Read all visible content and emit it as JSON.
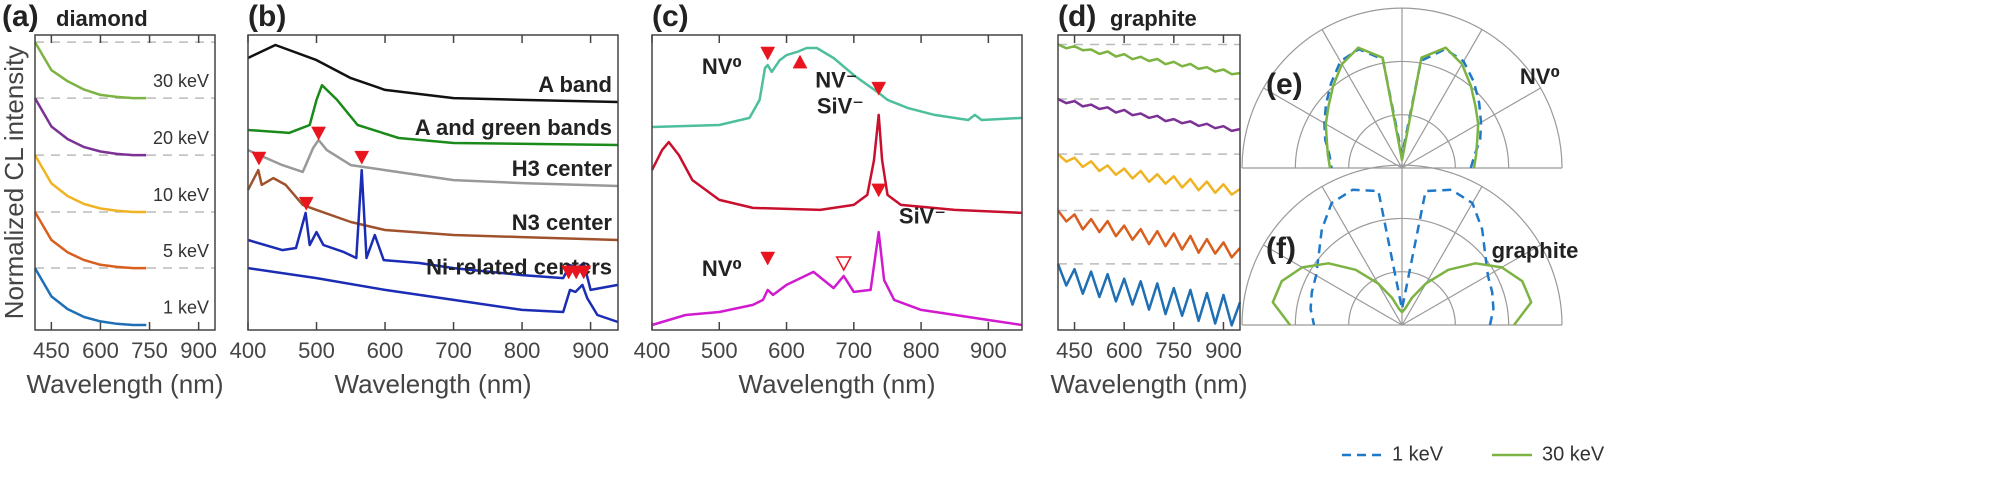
{
  "chart_data": [
    {
      "type": "line",
      "label": "(a)",
      "title": "diamond",
      "xlabel": "Wavelength (nm)",
      "ylabel": "Normalized CL intensity",
      "xlim": [
        400,
        950
      ],
      "xticks": [
        450,
        600,
        750,
        900
      ],
      "ylim": [
        0,
        100
      ],
      "dashed_guides": true,
      "x": [
        400,
        450,
        500,
        550,
        600,
        650,
        700,
        740
      ],
      "series": [
        {
          "name": "30 keV",
          "color": "#7cb342",
          "values": [
            97.6,
            88.1,
            84.3,
            81.5,
            79.7,
            79,
            78.6,
            78.6
          ]
        },
        {
          "name": "20 keV",
          "color": "#7b3294",
          "values": [
            78.6,
            69,
            64.7,
            62,
            60.5,
            59.7,
            59.3,
            59.3
          ]
        },
        {
          "name": "10 keV",
          "color": "#f0b323",
          "values": [
            59.3,
            49.7,
            45.4,
            42.7,
            41.2,
            40.4,
            40,
            40
          ]
        },
        {
          "name": "5 keV",
          "color": "#d95f1e",
          "values": [
            40,
            30.5,
            26.3,
            23.7,
            22.1,
            21.4,
            21,
            21
          ]
        },
        {
          "name": "1 keV",
          "color": "#1f6fb4",
          "values": [
            21,
            11.4,
            7.1,
            4.4,
            2.9,
            2.1,
            1.7,
            1.7
          ]
        }
      ]
    },
    {
      "type": "line",
      "label": "(b)",
      "xlabel": "Wavelength (nm)",
      "xlim": [
        400,
        940
      ],
      "xticks": [
        400,
        500,
        600,
        700,
        800,
        900
      ],
      "ylim": [
        0,
        100
      ],
      "series": [
        {
          "name": "A band",
          "color": "#111111",
          "x": [
            400,
            440,
            500,
            550,
            600,
            700,
            800,
            940
          ],
          "values": [
            92.2,
            96.6,
            91.5,
            85.4,
            81.4,
            78.6,
            78,
            77.3
          ]
        },
        {
          "name": "A and green bands",
          "color": "#1a8a1a",
          "x": [
            400,
            460,
            490,
            500,
            508,
            530,
            560,
            620,
            700,
            940
          ],
          "values": [
            67.8,
            66.8,
            69.5,
            78,
            83,
            78,
            69.5,
            65.1,
            63.4,
            62.7
          ]
        },
        {
          "name": "H3 center",
          "color": "#999999",
          "x": [
            400,
            450,
            480,
            495,
            503,
            515,
            550,
            600,
            700,
            800,
            940
          ],
          "values": [
            61,
            55.9,
            53.6,
            61.7,
            64.4,
            61,
            55.9,
            54.2,
            50.8,
            49.8,
            48.8
          ]
        },
        {
          "name": "N3 center",
          "color": "#a0522d",
          "x": [
            400,
            415,
            420,
            437,
            455,
            480,
            500,
            550,
            600,
            700,
            800,
            940
          ],
          "values": [
            47.5,
            54.2,
            49.2,
            51.5,
            49.2,
            42.4,
            40.7,
            36.6,
            33.9,
            32.2,
            31.5,
            30.5
          ]
        },
        {
          "name": "Ni-related centers",
          "color": "#1a2db4",
          "x": [
            400,
            450,
            470,
            484,
            490,
            500,
            510,
            540,
            558,
            566,
            573,
            585,
            598,
            650,
            700,
            800,
            860,
            870,
            880,
            890,
            900,
            940
          ],
          "values": [
            30.5,
            27.1,
            27.8,
            39.7,
            28.8,
            33.2,
            28.8,
            26.4,
            24.4,
            54.2,
            24.4,
            32.2,
            23.7,
            22.7,
            21,
            18.6,
            17.6,
            22,
            21,
            22.7,
            13.6,
            15.3
          ]
        },
        {
          "color": "#1a2db4",
          "x": [
            400,
            500,
            600,
            700,
            800,
            860,
            870,
            878,
            888,
            895,
            910,
            940
          ],
          "values": [
            21,
            17.6,
            13.6,
            10.2,
            6.8,
            6.1,
            13.6,
            12.9,
            15.3,
            10.8,
            5.1,
            2.7
          ]
        }
      ],
      "markers": [
        {
          "x": 503,
          "y": 66.8,
          "shape": "down"
        },
        {
          "x": 416,
          "y": 58.3,
          "shape": "down"
        },
        {
          "x": 485,
          "y": 43,
          "shape": "down"
        },
        {
          "x": 566,
          "y": 58.6,
          "shape": "down"
        },
        {
          "x": 868,
          "y": 19.7,
          "shape": "down"
        },
        {
          "x": 879,
          "y": 19.7,
          "shape": "down"
        },
        {
          "x": 890,
          "y": 19.7,
          "shape": "down"
        }
      ]
    },
    {
      "type": "line",
      "label": "(c)",
      "xlabel": "Wavelength (nm)",
      "xlim": [
        400,
        950
      ],
      "xticks": [
        400,
        500,
        600,
        700,
        800,
        900
      ],
      "ylim": [
        0,
        100
      ],
      "series": [
        {
          "color": "#4dbf9c",
          "x": [
            400,
            500,
            545,
            560,
            568,
            572,
            578,
            590,
            600,
            615,
            630,
            645,
            670,
            700,
            720,
            735,
            750,
            780,
            820,
            870,
            880,
            890,
            950
          ],
          "values": [
            68.8,
            69.5,
            71.9,
            78,
            88.8,
            89.8,
            87.5,
            91.5,
            93.2,
            94.2,
            95.6,
            95.6,
            92.2,
            86.4,
            83.1,
            80.7,
            78,
            75.3,
            72.9,
            71.2,
            72.9,
            71.2,
            71.9
          ]
        },
        {
          "color": "#c8102e",
          "x": [
            400,
            415,
            425,
            440,
            460,
            500,
            550,
            650,
            700,
            720,
            730,
            737,
            742,
            750,
            770,
            850,
            950
          ],
          "values": [
            54.2,
            61,
            63.7,
            59.3,
            50.8,
            44.1,
            41.4,
            40.7,
            42.4,
            45.8,
            57.6,
            72.9,
            57.6,
            45.8,
            42.4,
            40.7,
            39.7
          ]
        },
        {
          "color": "#d01bd0",
          "x": [
            400,
            450,
            500,
            550,
            565,
            572,
            580,
            600,
            640,
            670,
            685,
            700,
            725,
            737,
            745,
            760,
            800,
            900,
            950
          ],
          "values": [
            1.7,
            5.1,
            6.1,
            8.5,
            10.2,
            13.6,
            11.9,
            15.3,
            19.7,
            14.2,
            18.3,
            12.9,
            13.6,
            33.2,
            16.9,
            10.2,
            6.8,
            3.4,
            1.7
          ]
        }
      ],
      "markers": [
        {
          "x": 572,
          "y": 93.9,
          "shape": "down"
        },
        {
          "x": 620,
          "y": 90.8,
          "shape": "up"
        },
        {
          "x": 737,
          "y": 82,
          "shape": "down"
        },
        {
          "x": 572,
          "y": 24.4,
          "shape": "down"
        },
        {
          "x": 737,
          "y": 47.5,
          "shape": "down"
        },
        {
          "x": 685,
          "y": 22.7,
          "shape": "down-open"
        }
      ],
      "annotations": [
        {
          "text": "NV⁰",
          "x": 504,
          "y": 88.8
        },
        {
          "text": "NV⁻",
          "x": 674,
          "y": 84.1
        },
        {
          "text": "SiV⁻",
          "x": 680,
          "y": 75.3
        },
        {
          "text": "SiV⁻",
          "x": 802,
          "y": 38
        },
        {
          "text": "NV⁰",
          "x": 504,
          "y": 20.3
        }
      ]
    },
    {
      "type": "line",
      "label": "(d)",
      "title": "graphite",
      "xlabel": "Wavelength (nm)",
      "xlim": [
        400,
        950
      ],
      "xticks": [
        450,
        600,
        750,
        900
      ],
      "ylim": [
        0,
        100
      ],
      "dashed_guides": true,
      "x": [
        400,
        425,
        450,
        475,
        500,
        525,
        550,
        575,
        600,
        625,
        650,
        675,
        700,
        725,
        750,
        775,
        800,
        825,
        850,
        875,
        900,
        925,
        950
      ],
      "series": [
        {
          "color": "#7cb342",
          "values": [
            96.8,
            95.5,
            96.2,
            94.8,
            95.1,
            93.6,
            94.4,
            92.7,
            93.5,
            91.8,
            92.6,
            91.2,
            91.9,
            90.1,
            90.9,
            89.4,
            90.2,
            88.5,
            89.1,
            87.6,
            88.3,
            86.7,
            87.1
          ]
        },
        {
          "color": "#7b3294",
          "values": [
            78.3,
            76.9,
            77.6,
            75.8,
            76.4,
            74.9,
            75.5,
            73.7,
            74.6,
            72.8,
            73.4,
            71.9,
            72.6,
            70.8,
            71.5,
            70.1,
            70.7,
            69.2,
            69.9,
            68.4,
            69.1,
            67.5,
            68.1
          ]
        },
        {
          "color": "#f0b323",
          "values": [
            59.6,
            57.1,
            58.4,
            55.3,
            57.2,
            53.9,
            55.8,
            52.6,
            54.7,
            51.4,
            53.9,
            50.2,
            52.8,
            49.6,
            52.1,
            48.3,
            51.2,
            47.4,
            50.3,
            46.5,
            49.4,
            45.9,
            47.8
          ]
        },
        {
          "color": "#d95f1e",
          "values": [
            40.5,
            36.8,
            39.2,
            34.1,
            37.6,
            33.2,
            36.9,
            31.8,
            35.4,
            30.6,
            34.2,
            29.1,
            33.5,
            28.4,
            32.7,
            27.3,
            31.9,
            26.2,
            30.8,
            25.9,
            29.7,
            24.6,
            27.8
          ]
        },
        {
          "color": "#1f6fb4",
          "values": [
            22.4,
            15.1,
            20.6,
            12.3,
            19.8,
            11.2,
            18.9,
            9.7,
            17.4,
            8.6,
            16.5,
            6.9,
            15.8,
            5.4,
            14.2,
            4.8,
            13.6,
            3.1,
            12.5,
            2.2,
            11.9,
            1.6,
            9.4
          ]
        }
      ]
    },
    {
      "type": "polar",
      "label": "(e)",
      "title": "NV⁰",
      "rlim": [
        0,
        1
      ],
      "theta": [
        0,
        10,
        20,
        30,
        40,
        50,
        60,
        70,
        80,
        90,
        100,
        110,
        120,
        130,
        140,
        150,
        160,
        170,
        180
      ],
      "series": [
        {
          "color": "#1f78c8",
          "dash": true,
          "values": [
            0.43,
            0.46,
            0.52,
            0.57,
            0.63,
            0.7,
            0.77,
            0.79,
            0.68,
            0.08,
            0.69,
            0.79,
            0.77,
            0.69,
            0.62,
            0.56,
            0.51,
            0.46,
            0.44
          ]
        },
        {
          "color": "#7cb342",
          "values": [
            0.45,
            0.47,
            0.5,
            0.55,
            0.6,
            0.67,
            0.75,
            0.8,
            0.7,
            0.05,
            0.7,
            0.8,
            0.75,
            0.67,
            0.6,
            0.55,
            0.5,
            0.47,
            0.45
          ]
        }
      ]
    },
    {
      "type": "polar",
      "label": "(f)",
      "title": "graphite",
      "rlim": [
        0,
        1
      ],
      "legend": "bottom",
      "theta": [
        0,
        10,
        20,
        30,
        40,
        50,
        60,
        70,
        80,
        90,
        100,
        110,
        120,
        130,
        140,
        150,
        160,
        170,
        180
      ],
      "series": [
        {
          "name": "1 keV",
          "color": "#1f78c8",
          "dash": true,
          "values": [
            0.55,
            0.58,
            0.6,
            0.62,
            0.68,
            0.78,
            0.88,
            0.9,
            0.85,
            0.1,
            0.85,
            0.9,
            0.88,
            0.78,
            0.68,
            0.62,
            0.6,
            0.58,
            0.55
          ]
        },
        {
          "name": "30 keV",
          "color": "#7cb342",
          "values": [
            0.7,
            0.82,
            0.8,
            0.72,
            0.6,
            0.45,
            0.3,
            0.18,
            0.1,
            0.08,
            0.1,
            0.18,
            0.3,
            0.45,
            0.6,
            0.72,
            0.8,
            0.82,
            0.7
          ]
        }
      ]
    }
  ]
}
